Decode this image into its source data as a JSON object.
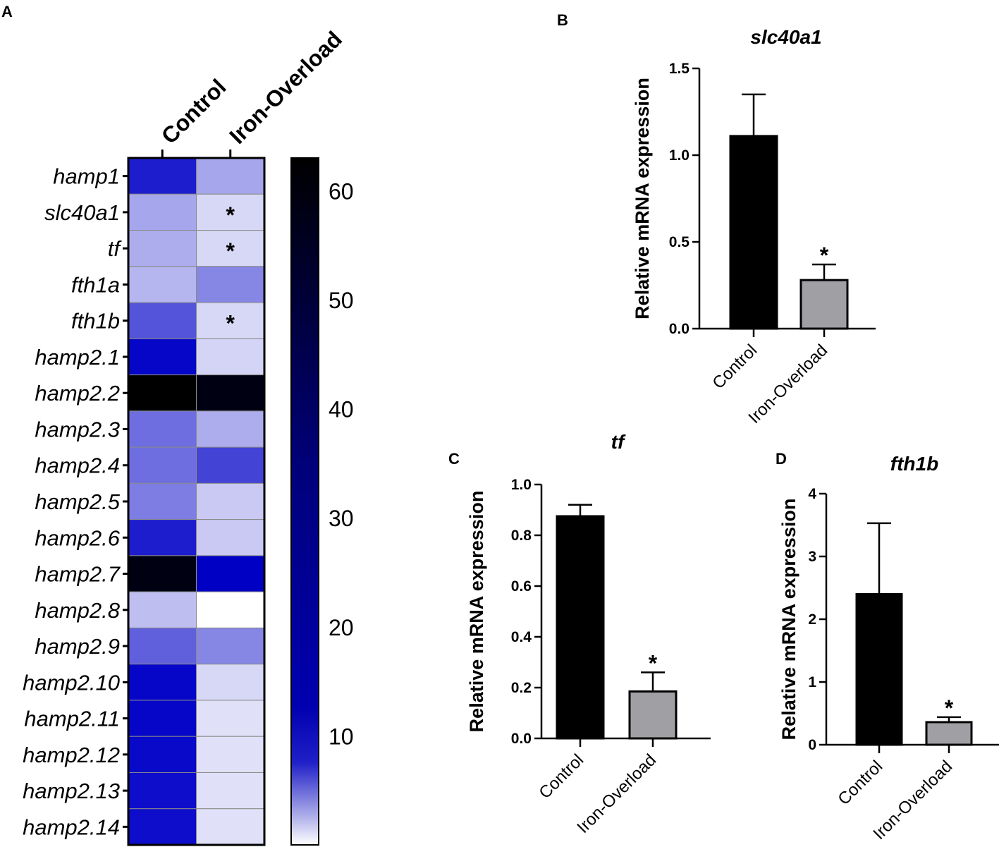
{
  "panels": {
    "a": "A",
    "b": "B",
    "c": "C",
    "d": "D"
  },
  "heatmap": {
    "columns": [
      "Control",
      "Iron-Overload"
    ],
    "genes": [
      "hamp1",
      "slc40a1",
      "tf",
      "fth1a",
      "fth1b",
      "hamp2.1",
      "hamp2.2",
      "hamp2.3",
      "hamp2.4",
      "hamp2.5",
      "hamp2.6",
      "hamp2.7",
      "hamp2.8",
      "hamp2.9",
      "hamp2.10",
      "hamp2.11",
      "hamp2.12",
      "hamp2.13",
      "hamp2.14"
    ],
    "values": [
      [
        24,
        3
      ],
      [
        3,
        0.5
      ],
      [
        2.5,
        0.5
      ],
      [
        2,
        6
      ],
      [
        13,
        0.5
      ],
      [
        30,
        0.6
      ],
      [
        63,
        60
      ],
      [
        9,
        2.5
      ],
      [
        9,
        16
      ],
      [
        7,
        1
      ],
      [
        24,
        1
      ],
      [
        60,
        32
      ],
      [
        1.5,
        0
      ],
      [
        11,
        6
      ],
      [
        30,
        0.5
      ],
      [
        30,
        0.3
      ],
      [
        29,
        0.3
      ],
      [
        28,
        0.3
      ],
      [
        28,
        0.3
      ]
    ],
    "significant": [
      [
        false,
        false
      ],
      [
        false,
        true
      ],
      [
        false,
        true
      ],
      [
        false,
        false
      ],
      [
        false,
        true
      ],
      [
        false,
        false
      ],
      [
        false,
        false
      ],
      [
        false,
        false
      ],
      [
        false,
        false
      ],
      [
        false,
        false
      ],
      [
        false,
        false
      ],
      [
        false,
        false
      ],
      [
        false,
        false
      ],
      [
        false,
        false
      ],
      [
        false,
        false
      ],
      [
        false,
        false
      ],
      [
        false,
        false
      ],
      [
        false,
        false
      ],
      [
        false,
        false
      ]
    ],
    "star": "*",
    "colorbar": {
      "min": 0,
      "max": 63,
      "ticks": [
        10,
        20,
        30,
        40,
        50,
        60
      ],
      "tick_labels": [
        "10",
        "20",
        "30",
        "40",
        "50",
        "60"
      ],
      "low_color": "#ffffff",
      "high_color": "#000000",
      "mid_color": "#0000a8"
    }
  },
  "chart_data": [
    {
      "type": "bar",
      "title": "slc40a1",
      "ylabel": "Relative mRNA expression",
      "categories": [
        "Control",
        "Iron-Overload"
      ],
      "values": [
        1.11,
        0.28
      ],
      "errors": [
        0.24,
        0.09
      ],
      "colors": [
        "#000000",
        "#a0a0a4"
      ],
      "significant": [
        false,
        true
      ],
      "ylim": [
        0,
        1.5
      ],
      "yticks": [
        0,
        0.5,
        1.0,
        1.5
      ],
      "ytick_labels": [
        "0.0",
        "0.5",
        "1.0",
        "1.5"
      ]
    },
    {
      "type": "bar",
      "title": "tf",
      "ylabel": "Relative mRNA expression",
      "categories": [
        "Control",
        "Iron-Overload"
      ],
      "values": [
        0.875,
        0.185
      ],
      "errors": [
        0.045,
        0.075
      ],
      "colors": [
        "#000000",
        "#a0a0a4"
      ],
      "significant": [
        false,
        true
      ],
      "ylim": [
        0,
        1.0
      ],
      "yticks": [
        0,
        0.2,
        0.4,
        0.6,
        0.8,
        1.0
      ],
      "ytick_labels": [
        "0.0",
        "0.2",
        "0.4",
        "0.6",
        "0.8",
        "1.0"
      ]
    },
    {
      "type": "bar",
      "title": "fth1b",
      "ylabel": "Relative mRNA expression",
      "categories": [
        "Control",
        "Iron-Overload"
      ],
      "values": [
        2.4,
        0.36
      ],
      "errors": [
        1.13,
        0.08
      ],
      "colors": [
        "#000000",
        "#a0a0a4"
      ],
      "significant": [
        false,
        true
      ],
      "ylim": [
        0,
        4
      ],
      "yticks": [
        0,
        1,
        2,
        3,
        4
      ],
      "ytick_labels": [
        "0",
        "1",
        "2",
        "3",
        "4"
      ]
    }
  ]
}
